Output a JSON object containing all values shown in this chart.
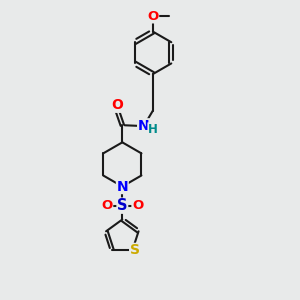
{
  "bg_color": "#e8eaea",
  "bond_color": "#1a1a1a",
  "bond_width": 1.5,
  "atom_colors": {
    "O": "#ff0000",
    "N": "#0000ff",
    "S_pip": "#0000cc",
    "S_th": "#ccaa00",
    "H": "#008b8b",
    "C": "#1a1a1a"
  },
  "font_size": 8.5
}
